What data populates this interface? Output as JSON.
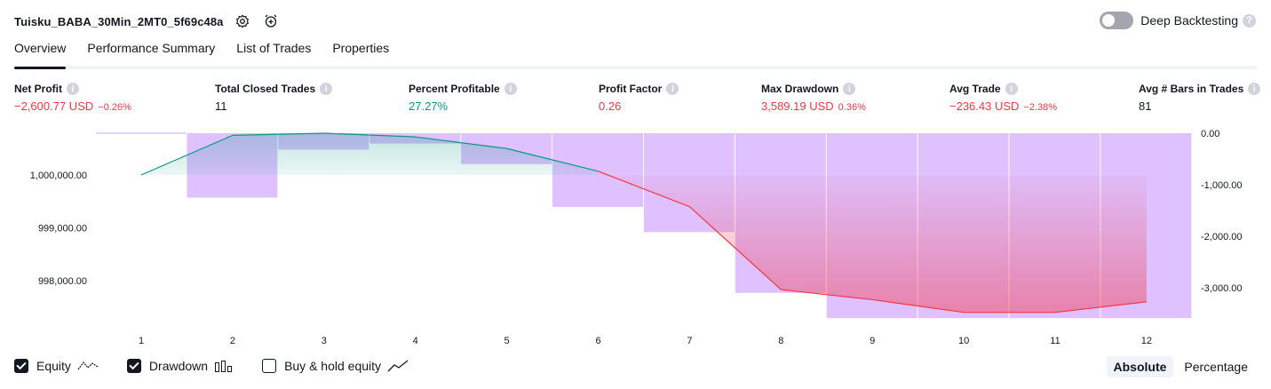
{
  "strategy": {
    "title": "Tuisku_BABA_30Min_2MT0_5f69c48a"
  },
  "deep_backtesting": {
    "label": "Deep Backtesting",
    "help": "?"
  },
  "tabs": [
    {
      "label": "Overview"
    },
    {
      "label": "Performance Summary"
    },
    {
      "label": "List of Trades"
    },
    {
      "label": "Properties"
    }
  ],
  "metrics": [
    {
      "label": "Net Profit",
      "value": "−2,600.77 USD",
      "sub": "−0.26%",
      "color": "red"
    },
    {
      "label": "Total Closed Trades",
      "value": "11",
      "sub": "",
      "color": "dark"
    },
    {
      "label": "Percent Profitable",
      "value": "27.27%",
      "sub": "",
      "color": "green"
    },
    {
      "label": "Profit Factor",
      "value": "0.26",
      "sub": "",
      "color": "red"
    },
    {
      "label": "Max Drawdown",
      "value": "3,589.19 USD",
      "sub": "0.36%",
      "color": "red"
    },
    {
      "label": "Avg Trade",
      "value": "−236.43 USD",
      "sub": "−2.38%",
      "color": "red"
    },
    {
      "label": "Avg # Bars in Trades",
      "value": "81",
      "sub": "",
      "color": "dark"
    }
  ],
  "legend": {
    "equity": "Equity",
    "drawdown": "Drawdown",
    "buy_hold": "Buy & hold equity"
  },
  "modes": {
    "absolute": "Absolute",
    "percentage": "Percentage"
  },
  "colors": {
    "equity_up": "#089981",
    "equity_down": "#f23645",
    "drawdown": "#b36bff"
  },
  "chart_data": {
    "type": "line",
    "x": [
      1,
      2,
      3,
      4,
      5,
      6,
      7,
      8,
      9,
      10,
      11,
      12
    ],
    "series": [
      {
        "name": "Equity",
        "values": [
          1000000.0,
          1000750.0,
          1000790.0,
          1000720.0,
          1000500.0,
          1000070.0,
          999400.0,
          997830.0,
          997640.0,
          997400.0,
          997400.0,
          997600.0
        ]
      },
      {
        "name": "Drawdown",
        "values": [
          0,
          -1250,
          -320,
          -200,
          -600,
          -1430,
          -1920,
          -3100,
          -3589.19,
          -3589.19,
          -3589.19,
          -3589.19
        ]
      }
    ],
    "left_ticks": [
      "1,000,000.00",
      "999,000.00",
      "998,000.00"
    ],
    "left_tick_values": [
      1000000,
      999000,
      998000
    ],
    "right_ticks": [
      "0.00",
      "-1,000.00",
      "-2,000.00",
      "-3,000.00"
    ],
    "right_tick_values": [
      0,
      -1000,
      -2000,
      -3000
    ],
    "x_ticks": [
      "1",
      "2",
      "3",
      "4",
      "5",
      "6",
      "7",
      "8",
      "9",
      "10",
      "11",
      "12"
    ],
    "ylim_left": [
      997400,
      1000800
    ],
    "ylim_right": [
      -3589.19,
      0
    ],
    "grid": false,
    "legend": "bottom-left"
  }
}
